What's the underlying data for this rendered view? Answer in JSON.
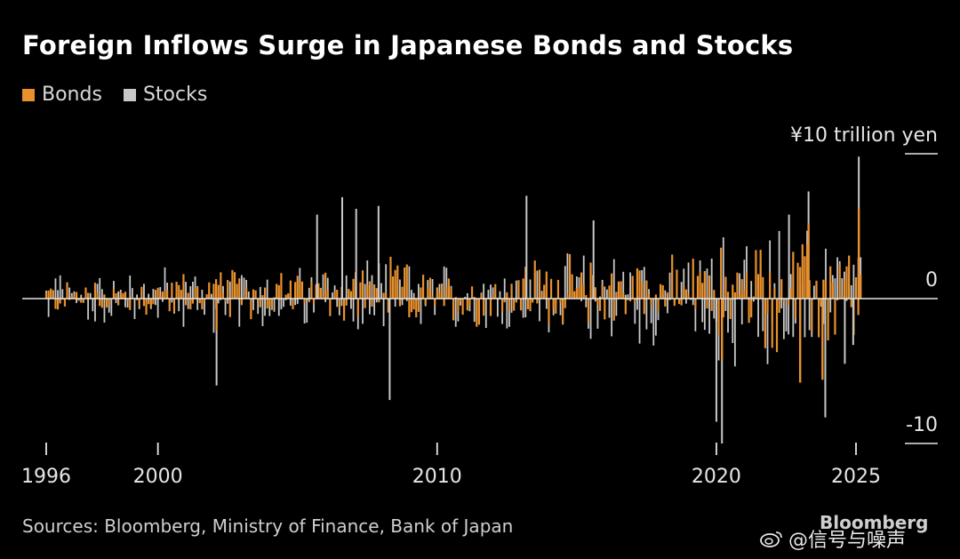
{
  "header": {
    "title": "Foreign Inflows Surge in Japanese Bonds and Stocks"
  },
  "legend": [
    {
      "label": "Bonds",
      "color": "#e8912e"
    },
    {
      "label": "Stocks",
      "color": "#c8c8c8"
    }
  ],
  "footer": {
    "source": "Sources: Bloomberg, Ministry of Finance, Bank of Japan",
    "brand": "Bloomberg"
  },
  "watermark": {
    "text": "@信号与噪声",
    "icon": "weibo-icon"
  },
  "chart_data": {
    "type": "bar",
    "title": "Foreign Inflows Surge in Japanese Bonds and Stocks",
    "x_range": [
      1996,
      2025.3
    ],
    "ylim": [
      -10,
      10
    ],
    "y_unit_label": "¥10 trillion yen",
    "y_ticks": [
      {
        "value": 10,
        "label": "¥10 trillion yen"
      },
      {
        "value": 0,
        "label": "0"
      },
      {
        "value": -10,
        "label": "-10"
      }
    ],
    "x_ticks": [
      {
        "value": 1996,
        "label": "1996"
      },
      {
        "value": 2000,
        "label": "2000"
      },
      {
        "value": 2010,
        "label": "2010"
      },
      {
        "value": 2020,
        "label": "2020"
      },
      {
        "value": 2025,
        "label": "2025"
      }
    ],
    "series": [
      {
        "name": "Bonds",
        "color": "#e8912e",
        "description": "monthly net foreign purchases of Japanese bonds",
        "segments": [
          {
            "from": 1996,
            "to": 2000,
            "mean": 0.1,
            "amp": 1.6
          },
          {
            "from": 2000,
            "to": 2006,
            "mean": 0.3,
            "amp": 2.0
          },
          {
            "from": 2006,
            "to": 2009,
            "mean": 0.4,
            "amp": 2.6
          },
          {
            "from": 2009,
            "to": 2013,
            "mean": 0.0,
            "amp": 2.2
          },
          {
            "from": 2013,
            "to": 2020,
            "mean": 0.5,
            "amp": 2.8
          },
          {
            "from": 2020,
            "to": 2025,
            "mean": 0.2,
            "amp": 4.5
          }
        ],
        "notable": [
          {
            "x": 2002.1,
            "y": -2.2
          },
          {
            "x": 2020.2,
            "y": -4.2
          },
          {
            "x": 2023.3,
            "y": 5.2
          },
          {
            "x": 2023.0,
            "y": -5.8
          },
          {
            "x": 2023.8,
            "y": -5.6
          },
          {
            "x": 2025.1,
            "y": 6.2
          }
        ]
      },
      {
        "name": "Stocks",
        "color": "#c8c8c8",
        "description": "monthly net foreign purchases of Japanese stocks",
        "notable": [
          {
            "x": 2002.1,
            "y": -6.0
          },
          {
            "x": 2005.7,
            "y": 5.8
          },
          {
            "x": 2006.6,
            "y": 7.0
          },
          {
            "x": 2007.1,
            "y": 6.2
          },
          {
            "x": 2008.3,
            "y": -7.0
          },
          {
            "x": 2007.9,
            "y": 6.4
          },
          {
            "x": 2013.2,
            "y": 7.1
          },
          {
            "x": 2015.6,
            "y": 5.4
          },
          {
            "x": 2020.2,
            "y": -10.0
          },
          {
            "x": 2020.0,
            "y": -8.5
          },
          {
            "x": 2022.6,
            "y": 5.8
          },
          {
            "x": 2023.3,
            "y": 7.4
          },
          {
            "x": 2023.9,
            "y": -8.2
          },
          {
            "x": 2024.6,
            "y": -4.5
          },
          {
            "x": 2025.1,
            "y": 9.8
          },
          {
            "x": 2024.9,
            "y": -3.2
          }
        ]
      }
    ]
  }
}
